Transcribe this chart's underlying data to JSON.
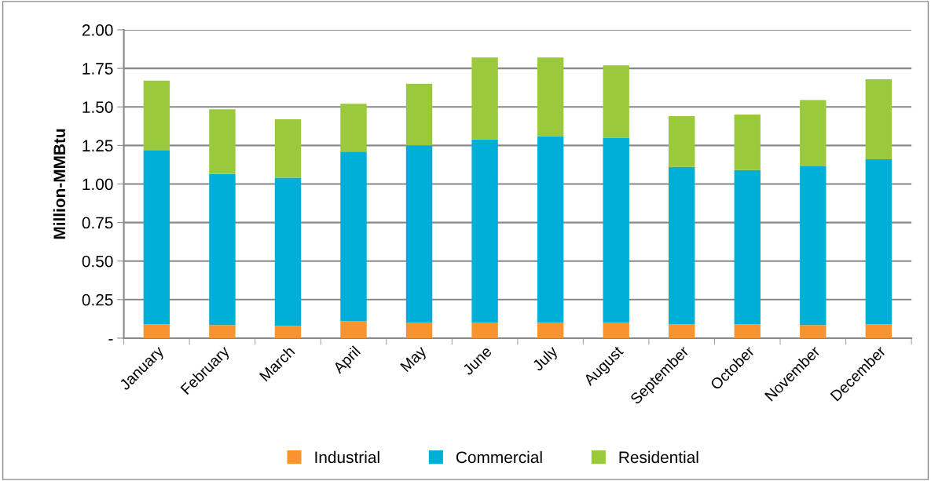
{
  "chart_data": {
    "type": "bar",
    "stacked": true,
    "ylabel": "Million-MMBtu",
    "categories": [
      "January",
      "February",
      "March",
      "April",
      "May",
      "June",
      "July",
      "August",
      "September",
      "October",
      "November",
      "December"
    ],
    "series": [
      {
        "name": "Industrial",
        "color": "#f7942d",
        "values": [
          0.09,
          0.085,
          0.08,
          0.11,
          0.1,
          0.1,
          0.1,
          0.1,
          0.09,
          0.09,
          0.085,
          0.09
        ]
      },
      {
        "name": "Commercial",
        "color": "#00afd7",
        "values": [
          1.13,
          0.98,
          0.96,
          1.1,
          1.15,
          1.19,
          1.21,
          1.2,
          1.02,
          1.0,
          1.03,
          1.07
        ]
      },
      {
        "name": "Residential",
        "color": "#9aca3c",
        "values": [
          0.45,
          0.42,
          0.38,
          0.31,
          0.4,
          0.53,
          0.51,
          0.47,
          0.33,
          0.36,
          0.43,
          0.52
        ]
      }
    ],
    "ylim": [
      0,
      2
    ],
    "yticks": [
      {
        "value": 0,
        "label": "-"
      },
      {
        "value": 0.25,
        "label": "0.25"
      },
      {
        "value": 0.5,
        "label": "0.50"
      },
      {
        "value": 0.75,
        "label": "0.75"
      },
      {
        "value": 1,
        "label": "1.00"
      },
      {
        "value": 1.25,
        "label": "1.25"
      },
      {
        "value": 1.5,
        "label": "1.50"
      },
      {
        "value": 1.75,
        "label": "1.75"
      },
      {
        "value": 2,
        "label": "2.00"
      }
    ],
    "grid": "y",
    "legend": "bottom"
  }
}
